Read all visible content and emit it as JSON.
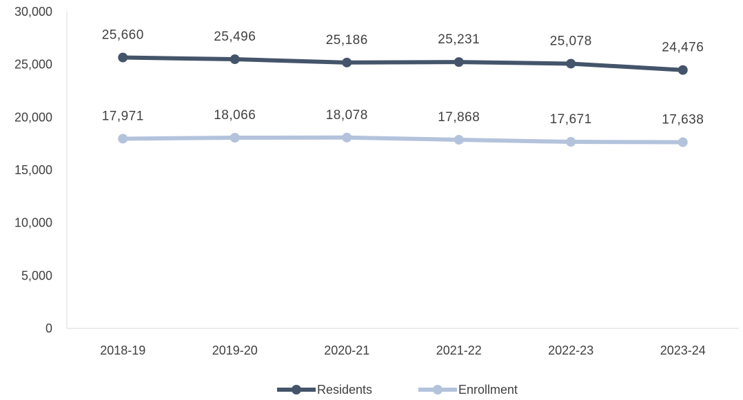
{
  "chart_data": {
    "type": "line",
    "categories": [
      "2018-19",
      "2019-20",
      "2020-21",
      "2021-22",
      "2022-23",
      "2023-24"
    ],
    "series": [
      {
        "name": "Residents",
        "color": "#44546a",
        "values": [
          25660,
          25496,
          25186,
          25231,
          25078,
          24476
        ],
        "labels": [
          "25,660",
          "25,496",
          "25,186",
          "25,231",
          "25,078",
          "24,476"
        ]
      },
      {
        "name": "Enrollment",
        "color": "#b4c3dc",
        "values": [
          17971,
          18066,
          18078,
          17868,
          17671,
          17638
        ],
        "labels": [
          "17,971",
          "18,066",
          "18,078",
          "17,868",
          "17,671",
          "17,638"
        ]
      }
    ],
    "ylim": [
      0,
      30000
    ],
    "yticks": [
      0,
      5000,
      10000,
      15000,
      20000,
      25000,
      30000
    ],
    "ytick_labels": [
      "0",
      "5,000",
      "10,000",
      "15,000",
      "20,000",
      "25,000",
      "30,000"
    ],
    "grid": false,
    "legend": "bottom-center"
  }
}
